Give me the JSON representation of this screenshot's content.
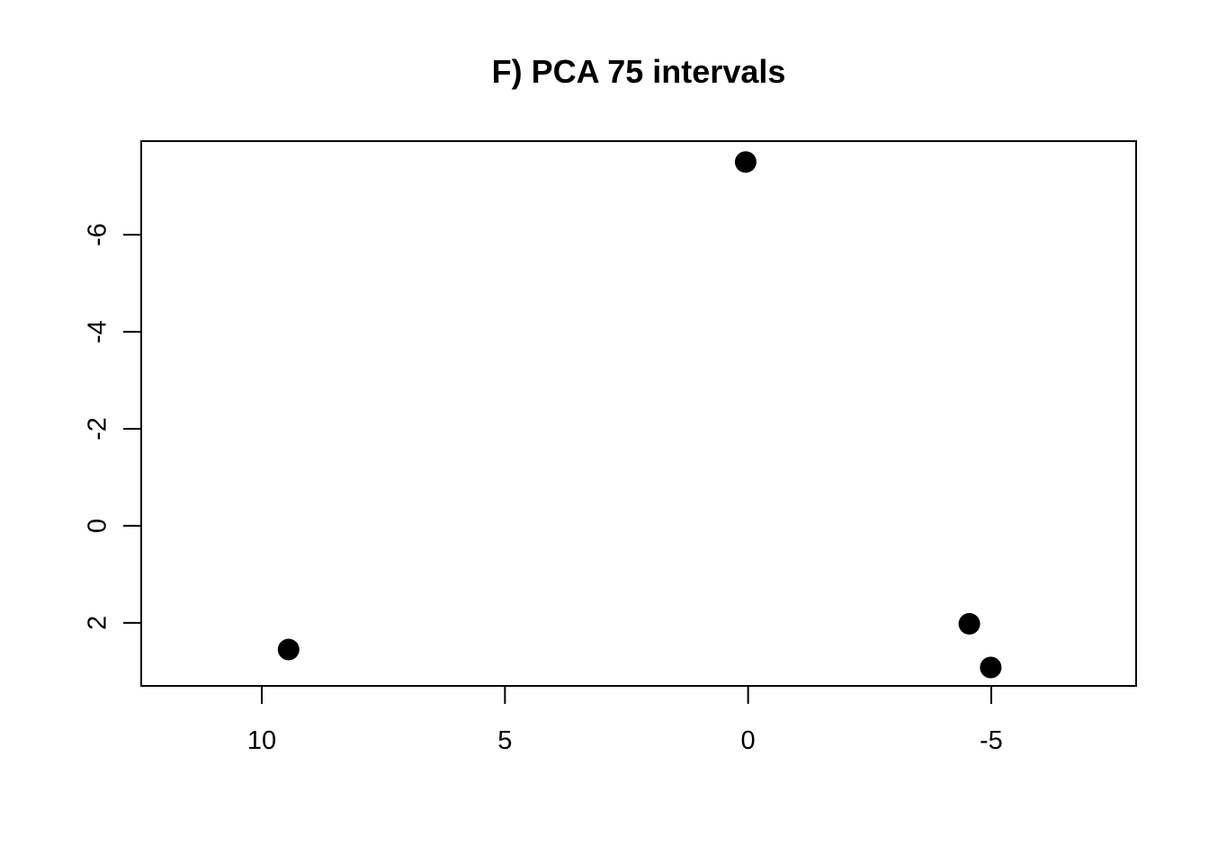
{
  "chart_data": {
    "type": "scatter",
    "title": "F) PCA 75 intervals",
    "xlabel": "",
    "ylabel": "",
    "xlim": [
      12.48,
      -7.98
    ],
    "ylim": [
      3.3,
      -7.93
    ],
    "x_reversed": true,
    "y_reversed": true,
    "x_ticks": [
      10,
      5,
      0,
      -5
    ],
    "x_tick_labels": [
      "10",
      "5",
      "0",
      "-5"
    ],
    "y_ticks": [
      2,
      0,
      -2,
      -4,
      -6
    ],
    "y_tick_labels": [
      "2",
      "0",
      "-2",
      "-4",
      "-6"
    ],
    "grid": false,
    "legend": null,
    "point_color": "#000000",
    "points": [
      {
        "x": 9.45,
        "y": 2.55
      },
      {
        "x": 0.05,
        "y": -7.5
      },
      {
        "x": -4.55,
        "y": 2.02
      },
      {
        "x": -4.99,
        "y": 2.92
      }
    ]
  }
}
